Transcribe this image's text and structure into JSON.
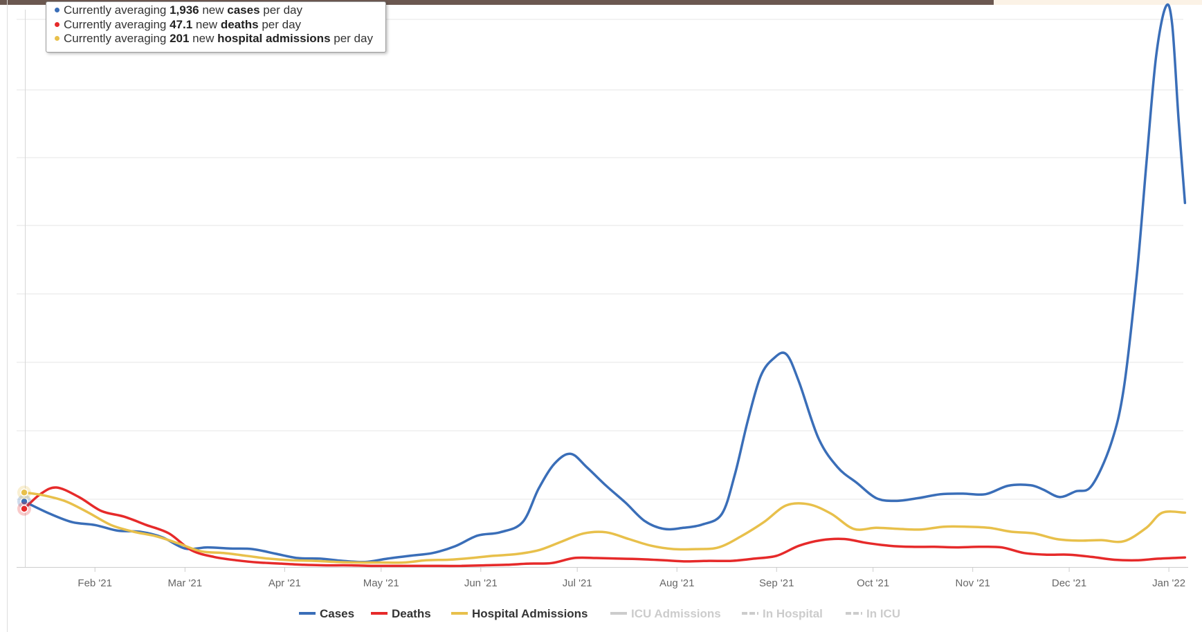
{
  "colors": {
    "cases": "#3a6eb8",
    "deaths": "#e62a2a",
    "hospital": "#e8c04b",
    "disabled": "#cccccc",
    "topbar_dark": "#6b5850",
    "topbar_light": "#fbf2e6",
    "grid": "#e6e6e6",
    "axis_text": "#666666",
    "legend_text": "#333333"
  },
  "tooltip": [
    {
      "color": "#3a6eb8",
      "pre": "Currently averaging ",
      "value": "1,936",
      "mid": " new ",
      "metric": "cases",
      "post": " per day"
    },
    {
      "color": "#e62a2a",
      "pre": "Currently averaging ",
      "value": "47.1",
      "mid": " new ",
      "metric": "deaths",
      "post": " per day"
    },
    {
      "color": "#e8c04b",
      "pre": "Currently averaging ",
      "value": "201",
      "mid": " new ",
      "metric": "hospital admissions",
      "post": " per day"
    }
  ],
  "chart_data": {
    "type": "line",
    "x_range": [
      "2021-01-10",
      "2022-01-07"
    ],
    "y_range_relative": [
      0,
      1
    ],
    "y_note": "no y-axis tick labels are shown; values are relative chart heights",
    "grid": "horizontal",
    "legend_position": "bottom",
    "xticks": [
      {
        "date": "2021-02-01",
        "label": "Feb '21"
      },
      {
        "date": "2021-03-01",
        "label": "Mar '21"
      },
      {
        "date": "2021-04-01",
        "label": "Apr '21"
      },
      {
        "date": "2021-05-01",
        "label": "May '21"
      },
      {
        "date": "2021-06-01",
        "label": "Jun '21"
      },
      {
        "date": "2021-07-01",
        "label": "Jul '21"
      },
      {
        "date": "2021-08-01",
        "label": "Aug '21"
      },
      {
        "date": "2021-09-01",
        "label": "Sep '21"
      },
      {
        "date": "2021-10-01",
        "label": "Oct '21"
      },
      {
        "date": "2021-11-01",
        "label": "Nov '21"
      },
      {
        "date": "2021-12-01",
        "label": "Dec '21"
      },
      {
        "date": "2022-01-01",
        "label": "Jan '22"
      }
    ],
    "series": [
      {
        "name": "Cases",
        "color": "#3a6eb8",
        "key": "cases",
        "points": [
          [
            "2021-01-10",
            0.117
          ],
          [
            "2021-01-18",
            0.095
          ],
          [
            "2021-01-25",
            0.08
          ],
          [
            "2021-02-01",
            0.075
          ],
          [
            "2021-02-08",
            0.065
          ],
          [
            "2021-02-15",
            0.063
          ],
          [
            "2021-02-22",
            0.053
          ],
          [
            "2021-03-01",
            0.033
          ],
          [
            "2021-03-08",
            0.035
          ],
          [
            "2021-03-15",
            0.033
          ],
          [
            "2021-03-22",
            0.032
          ],
          [
            "2021-03-29",
            0.024
          ],
          [
            "2021-04-05",
            0.016
          ],
          [
            "2021-04-12",
            0.015
          ],
          [
            "2021-04-19",
            0.011
          ],
          [
            "2021-04-26",
            0.009
          ],
          [
            "2021-05-03",
            0.015
          ],
          [
            "2021-05-10",
            0.02
          ],
          [
            "2021-05-17",
            0.025
          ],
          [
            "2021-05-24",
            0.037
          ],
          [
            "2021-05-31",
            0.056
          ],
          [
            "2021-06-07",
            0.062
          ],
          [
            "2021-06-14",
            0.08
          ],
          [
            "2021-06-19",
            0.14
          ],
          [
            "2021-06-24",
            0.185
          ],
          [
            "2021-06-29",
            0.202
          ],
          [
            "2021-07-04",
            0.178
          ],
          [
            "2021-07-10",
            0.145
          ],
          [
            "2021-07-16",
            0.115
          ],
          [
            "2021-07-22",
            0.082
          ],
          [
            "2021-07-28",
            0.068
          ],
          [
            "2021-08-03",
            0.07
          ],
          [
            "2021-08-09",
            0.076
          ],
          [
            "2021-08-15",
            0.095
          ],
          [
            "2021-08-19",
            0.165
          ],
          [
            "2021-08-23",
            0.26
          ],
          [
            "2021-08-27",
            0.34
          ],
          [
            "2021-08-31",
            0.372
          ],
          [
            "2021-09-04",
            0.38
          ],
          [
            "2021-09-08",
            0.33
          ],
          [
            "2021-09-14",
            0.23
          ],
          [
            "2021-09-20",
            0.178
          ],
          [
            "2021-09-26",
            0.15
          ],
          [
            "2021-10-02",
            0.123
          ],
          [
            "2021-10-08",
            0.118
          ],
          [
            "2021-10-15",
            0.123
          ],
          [
            "2021-10-22",
            0.13
          ],
          [
            "2021-10-29",
            0.131
          ],
          [
            "2021-11-05",
            0.13
          ],
          [
            "2021-11-12",
            0.145
          ],
          [
            "2021-11-19",
            0.146
          ],
          [
            "2021-11-23",
            0.138
          ],
          [
            "2021-11-28",
            0.125
          ],
          [
            "2021-12-03",
            0.135
          ],
          [
            "2021-12-08",
            0.145
          ],
          [
            "2021-12-14",
            0.22
          ],
          [
            "2021-12-18",
            0.32
          ],
          [
            "2021-12-22",
            0.52
          ],
          [
            "2021-12-25",
            0.72
          ],
          [
            "2021-12-28",
            0.91
          ],
          [
            "2021-12-31",
            1.0
          ],
          [
            "2022-01-02",
            0.97
          ],
          [
            "2022-01-04",
            0.8
          ],
          [
            "2022-01-06",
            0.65
          ]
        ]
      },
      {
        "name": "Deaths",
        "color": "#e62a2a",
        "key": "deaths",
        "points": [
          [
            "2021-01-10",
            0.104
          ],
          [
            "2021-01-15",
            0.13
          ],
          [
            "2021-01-20",
            0.142
          ],
          [
            "2021-01-27",
            0.125
          ],
          [
            "2021-02-03",
            0.1
          ],
          [
            "2021-02-10",
            0.09
          ],
          [
            "2021-02-17",
            0.075
          ],
          [
            "2021-02-24",
            0.06
          ],
          [
            "2021-03-03",
            0.03
          ],
          [
            "2021-03-10",
            0.018
          ],
          [
            "2021-03-17",
            0.012
          ],
          [
            "2021-03-24",
            0.008
          ],
          [
            "2021-03-31",
            0.006
          ],
          [
            "2021-04-07",
            0.004
          ],
          [
            "2021-04-14",
            0.003
          ],
          [
            "2021-04-21",
            0.003
          ],
          [
            "2021-04-28",
            0.002
          ],
          [
            "2021-05-05",
            0.002
          ],
          [
            "2021-05-12",
            0.002
          ],
          [
            "2021-05-19",
            0.002
          ],
          [
            "2021-05-26",
            0.002
          ],
          [
            "2021-06-02",
            0.003
          ],
          [
            "2021-06-09",
            0.004
          ],
          [
            "2021-06-16",
            0.006
          ],
          [
            "2021-06-23",
            0.007
          ],
          [
            "2021-06-30",
            0.016
          ],
          [
            "2021-07-07",
            0.016
          ],
          [
            "2021-07-14",
            0.015
          ],
          [
            "2021-07-21",
            0.014
          ],
          [
            "2021-07-28",
            0.012
          ],
          [
            "2021-08-04",
            0.01
          ],
          [
            "2021-08-11",
            0.011
          ],
          [
            "2021-08-18",
            0.011
          ],
          [
            "2021-08-25",
            0.015
          ],
          [
            "2021-09-01",
            0.02
          ],
          [
            "2021-09-08",
            0.038
          ],
          [
            "2021-09-15",
            0.048
          ],
          [
            "2021-09-22",
            0.05
          ],
          [
            "2021-09-29",
            0.043
          ],
          [
            "2021-10-06",
            0.038
          ],
          [
            "2021-10-13",
            0.036
          ],
          [
            "2021-10-20",
            0.036
          ],
          [
            "2021-10-27",
            0.035
          ],
          [
            "2021-11-03",
            0.036
          ],
          [
            "2021-11-10",
            0.035
          ],
          [
            "2021-11-17",
            0.025
          ],
          [
            "2021-11-24",
            0.022
          ],
          [
            "2021-12-01",
            0.022
          ],
          [
            "2021-12-08",
            0.018
          ],
          [
            "2021-12-15",
            0.013
          ],
          [
            "2021-12-22",
            0.012
          ],
          [
            "2021-12-29",
            0.015
          ],
          [
            "2022-01-06",
            0.017
          ]
        ]
      },
      {
        "name": "Hospital Admissions",
        "color": "#e8c04b",
        "key": "hospital",
        "points": [
          [
            "2021-01-10",
            0.133
          ],
          [
            "2021-01-16",
            0.128
          ],
          [
            "2021-01-23",
            0.117
          ],
          [
            "2021-01-30",
            0.097
          ],
          [
            "2021-02-06",
            0.075
          ],
          [
            "2021-02-13",
            0.063
          ],
          [
            "2021-02-20",
            0.055
          ],
          [
            "2021-02-27",
            0.042
          ],
          [
            "2021-03-06",
            0.028
          ],
          [
            "2021-03-13",
            0.025
          ],
          [
            "2021-03-20",
            0.02
          ],
          [
            "2021-03-27",
            0.015
          ],
          [
            "2021-04-03",
            0.012
          ],
          [
            "2021-04-10",
            0.011
          ],
          [
            "2021-04-17",
            0.009
          ],
          [
            "2021-04-24",
            0.008
          ],
          [
            "2021-05-01",
            0.008
          ],
          [
            "2021-05-08",
            0.008
          ],
          [
            "2021-05-15",
            0.012
          ],
          [
            "2021-05-22",
            0.013
          ],
          [
            "2021-05-29",
            0.016
          ],
          [
            "2021-06-05",
            0.02
          ],
          [
            "2021-06-12",
            0.023
          ],
          [
            "2021-06-19",
            0.03
          ],
          [
            "2021-06-26",
            0.045
          ],
          [
            "2021-07-03",
            0.06
          ],
          [
            "2021-07-10",
            0.062
          ],
          [
            "2021-07-17",
            0.05
          ],
          [
            "2021-07-24",
            0.038
          ],
          [
            "2021-07-31",
            0.032
          ],
          [
            "2021-08-07",
            0.032
          ],
          [
            "2021-08-14",
            0.035
          ],
          [
            "2021-08-21",
            0.055
          ],
          [
            "2021-08-28",
            0.08
          ],
          [
            "2021-09-04",
            0.11
          ],
          [
            "2021-09-11",
            0.112
          ],
          [
            "2021-09-18",
            0.095
          ],
          [
            "2021-09-25",
            0.068
          ],
          [
            "2021-10-02",
            0.07
          ],
          [
            "2021-10-09",
            0.068
          ],
          [
            "2021-10-16",
            0.067
          ],
          [
            "2021-10-23",
            0.072
          ],
          [
            "2021-10-30",
            0.072
          ],
          [
            "2021-11-06",
            0.07
          ],
          [
            "2021-11-13",
            0.063
          ],
          [
            "2021-11-20",
            0.06
          ],
          [
            "2021-11-27",
            0.05
          ],
          [
            "2021-12-04",
            0.047
          ],
          [
            "2021-12-11",
            0.048
          ],
          [
            "2021-12-18",
            0.046
          ],
          [
            "2021-12-25",
            0.07
          ],
          [
            "2021-12-30",
            0.097
          ],
          [
            "2022-01-06",
            0.097
          ]
        ]
      }
    ],
    "legend": [
      {
        "label": "Cases",
        "color": "#3a6eb8",
        "style": "solid",
        "enabled": true
      },
      {
        "label": "Deaths",
        "color": "#e62a2a",
        "style": "solid",
        "enabled": true
      },
      {
        "label": "Hospital Admissions",
        "color": "#e8c04b",
        "style": "solid",
        "enabled": true
      },
      {
        "label": "ICU Admissions",
        "color": "#cccccc",
        "style": "solid",
        "enabled": false
      },
      {
        "label": "In Hospital",
        "color": "#cccccc",
        "style": "dashed",
        "enabled": false
      },
      {
        "label": "In ICU",
        "color": "#cccccc",
        "style": "dashed",
        "enabled": false
      }
    ]
  }
}
